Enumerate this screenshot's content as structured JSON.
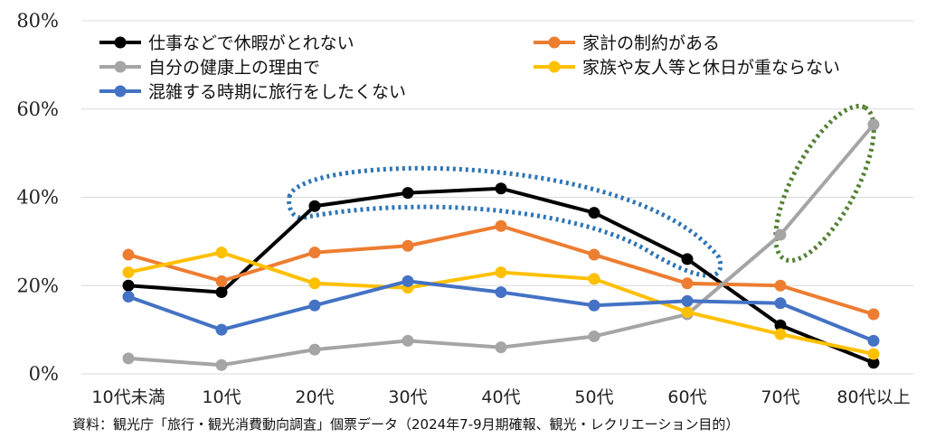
{
  "colors": {
    "series": [
      "#000000",
      "#ED7D31",
      "#A5A5A5",
      "#FFC000",
      "#4472C4"
    ],
    "highlight_blue": "#2E75B6",
    "highlight_green": "#548235",
    "grid": "#d9d9d9"
  },
  "source": "資料：観光庁「旅行・観光消費動向調査」個票データ（2024年7-9月期確報、観光・レクリエーション目的）",
  "chart_data": {
    "type": "line",
    "title": "",
    "xlabel": "",
    "ylabel": "",
    "categories": [
      "10代未満",
      "10代",
      "20代",
      "30代",
      "40代",
      "50代",
      "60代",
      "70代",
      "80代以上"
    ],
    "ylim": [
      0,
      80
    ],
    "yticks": [
      0,
      20,
      40,
      60,
      80
    ],
    "ytick_labels": [
      "0%",
      "20%",
      "40%",
      "60%",
      "80%"
    ],
    "grid": true,
    "legend_position": "top",
    "series": [
      {
        "name": "仕事などで休暇がとれない",
        "values": [
          20,
          18.5,
          38,
          41,
          42,
          36.5,
          26,
          11,
          2.5
        ]
      },
      {
        "name": "家計の制約がある",
        "values": [
          27,
          21,
          27.5,
          29,
          33.5,
          27,
          20.5,
          20,
          13.5
        ]
      },
      {
        "name": "自分の健康上の理由で",
        "values": [
          3.5,
          2,
          5.5,
          7.5,
          6,
          8.5,
          13.5,
          31.5,
          56.5
        ]
      },
      {
        "name": "家族や友人等と休日が重ならない",
        "values": [
          23,
          27.5,
          20.5,
          19.5,
          23,
          21.5,
          14,
          9,
          4.5
        ]
      },
      {
        "name": "混雑する時期に旅行をしたくない",
        "values": [
          17.5,
          10,
          15.5,
          21,
          18.5,
          15.5,
          16.5,
          16,
          7.5
        ]
      }
    ]
  }
}
